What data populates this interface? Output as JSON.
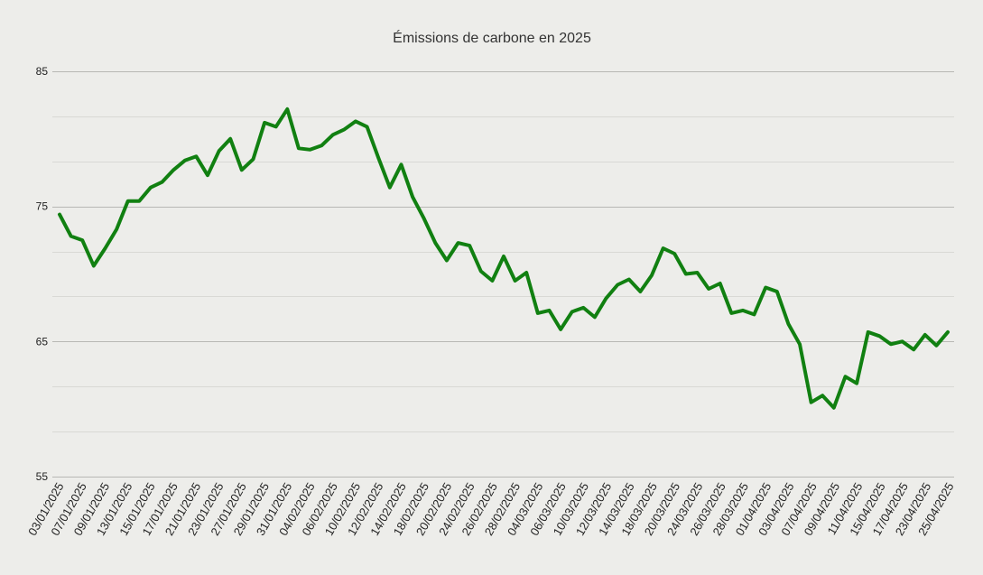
{
  "chart_data": {
    "type": "line",
    "title": "Émissions de carbone en 2025",
    "xlabel": "",
    "ylabel": "",
    "ylim": [
      55,
      85
    ],
    "yticks": [
      55,
      65,
      75,
      85
    ],
    "grid": true,
    "legend": "none",
    "line_color": "#118011",
    "x_tick_labels": [
      "03/01/2025",
      "07/01/2025",
      "09/01/2025",
      "13/01/2025",
      "15/01/2025",
      "17/01/2025",
      "21/01/2025",
      "23/01/2025",
      "27/01/2025",
      "29/01/2025",
      "31/01/2025",
      "04/02/2025",
      "06/02/2025",
      "10/02/2025",
      "12/02/2025",
      "14/02/2025",
      "18/02/2025",
      "20/02/2025",
      "24/02/2025",
      "26/02/2025",
      "28/02/2025",
      "04/03/2025",
      "06/03/2025",
      "10/03/2025",
      "12/03/2025",
      "14/03/2025",
      "18/03/2025",
      "20/03/2025",
      "24/03/2025",
      "26/03/2025",
      "28/03/2025",
      "01/04/2025",
      "03/04/2025",
      "07/04/2025",
      "09/04/2025",
      "11/04/2025",
      "15/04/2025",
      "17/04/2025",
      "23/04/2025",
      "25/04/2025"
    ],
    "series": [
      {
        "name": "Émissions de carbone",
        "values": [
          74.4,
          72.8,
          72.5,
          70.6,
          71.9,
          73.3,
          75.4,
          75.4,
          76.4,
          76.8,
          77.7,
          78.4,
          78.7,
          77.3,
          79.1,
          80.0,
          77.7,
          78.5,
          81.2,
          80.9,
          82.2,
          79.3,
          79.2,
          79.5,
          80.3,
          80.7,
          81.3,
          80.9,
          78.6,
          76.4,
          78.1,
          75.7,
          74.1,
          72.3,
          71.0,
          72.3,
          72.1,
          70.2,
          69.5,
          71.3,
          69.5,
          70.1,
          67.1,
          67.3,
          65.9,
          67.2,
          67.5,
          66.8,
          68.2,
          69.2,
          69.6,
          68.7,
          69.9,
          71.9,
          71.5,
          70.0,
          70.1,
          68.9,
          69.3,
          67.1,
          67.3,
          67.0,
          69.0,
          68.7,
          66.3,
          64.8,
          60.5,
          61.0,
          60.1,
          62.4,
          61.9,
          65.7,
          65.4,
          64.8,
          65.0,
          64.4,
          65.5,
          64.7,
          65.7
        ]
      }
    ]
  }
}
